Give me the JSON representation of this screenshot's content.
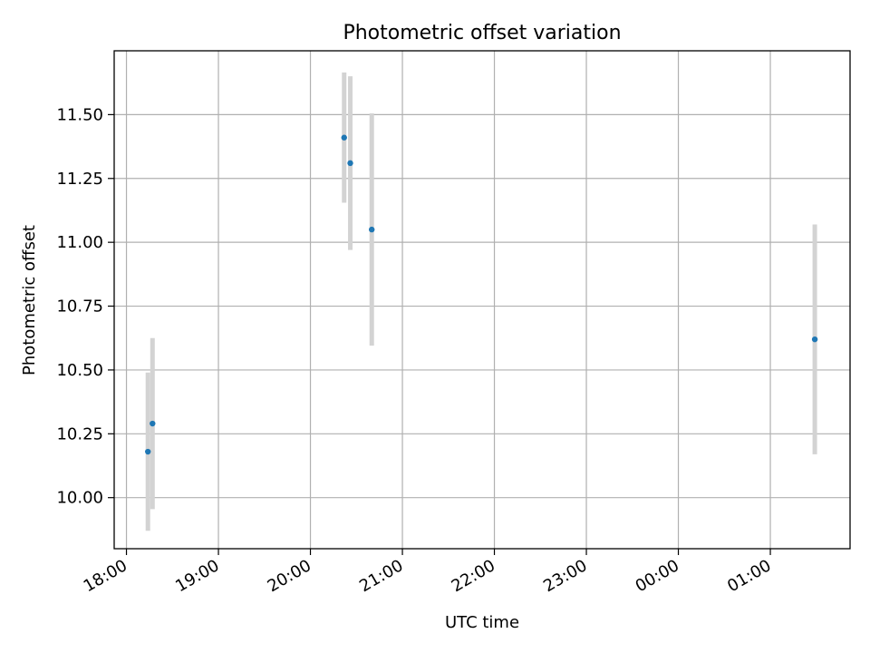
{
  "chart_data": {
    "type": "scatter",
    "title": "Photometric offset variation",
    "xlabel": "UTC time",
    "ylabel": "Photometric offset",
    "x_ticks": [
      "18:00",
      "19:00",
      "20:00",
      "21:00",
      "22:00",
      "23:00",
      "00:00",
      "01:00"
    ],
    "y_ticks": [
      "10.00",
      "10.25",
      "10.50",
      "10.75",
      "11.00",
      "11.25",
      "11.50"
    ],
    "xlim": [
      "17:52",
      "01:52"
    ],
    "ylim": [
      9.8,
      11.75
    ],
    "grid": true,
    "x": [
      "18:14",
      "18:17",
      "20:22",
      "20:26",
      "20:40",
      "01:29"
    ],
    "y": [
      10.18,
      10.29,
      11.41,
      11.31,
      11.05,
      10.62
    ],
    "yerr": [
      0.31,
      0.335,
      0.255,
      0.34,
      0.455,
      0.45
    ],
    "point_color": "#1f77b4",
    "errorbar_color": "#d3d3d3",
    "grid_color": "#b0b0b0"
  }
}
